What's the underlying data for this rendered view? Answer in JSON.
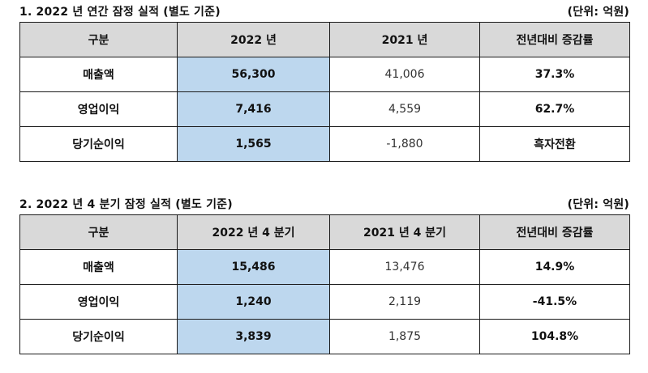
{
  "section1": {
    "title": "1. 2022 년 연간 잠정 실적 (별도 기준)",
    "unit": "(단위: 억원)",
    "headers": [
      "구분",
      "2022 년",
      "2021 년",
      "전년대비 증감률"
    ],
    "rows": [
      {
        "label": "매출액",
        "current": "56,300",
        "previous": "41,006",
        "change": "37.3%"
      },
      {
        "label": "영업이익",
        "current": "7,416",
        "previous": "4,559",
        "change": "62.7%"
      },
      {
        "label": "당기순이익",
        "current": "1,565",
        "previous": "-1,880",
        "change": "흑자전환"
      }
    ]
  },
  "section2": {
    "title": "2. 2022 년 4 분기 잠정 실적 (별도 기준)",
    "unit": "(단위: 억원)",
    "headers": [
      "구분",
      "2022 년 4 분기",
      "2021 년 4 분기",
      "전년대비 증감률"
    ],
    "rows": [
      {
        "label": "매출액",
        "current": "15,486",
        "previous": "13,476",
        "change": "14.9%"
      },
      {
        "label": "영업이익",
        "current": "1,240",
        "previous": "2,119",
        "change": "-41.5%"
      },
      {
        "label": "당기순이익",
        "current": "3,839",
        "previous": "1,875",
        "change": "104.8%"
      }
    ]
  },
  "colors": {
    "header_bg": "#d9d9d9",
    "highlight_bg": "#bdd7ee",
    "border": "#1a1a1a"
  }
}
